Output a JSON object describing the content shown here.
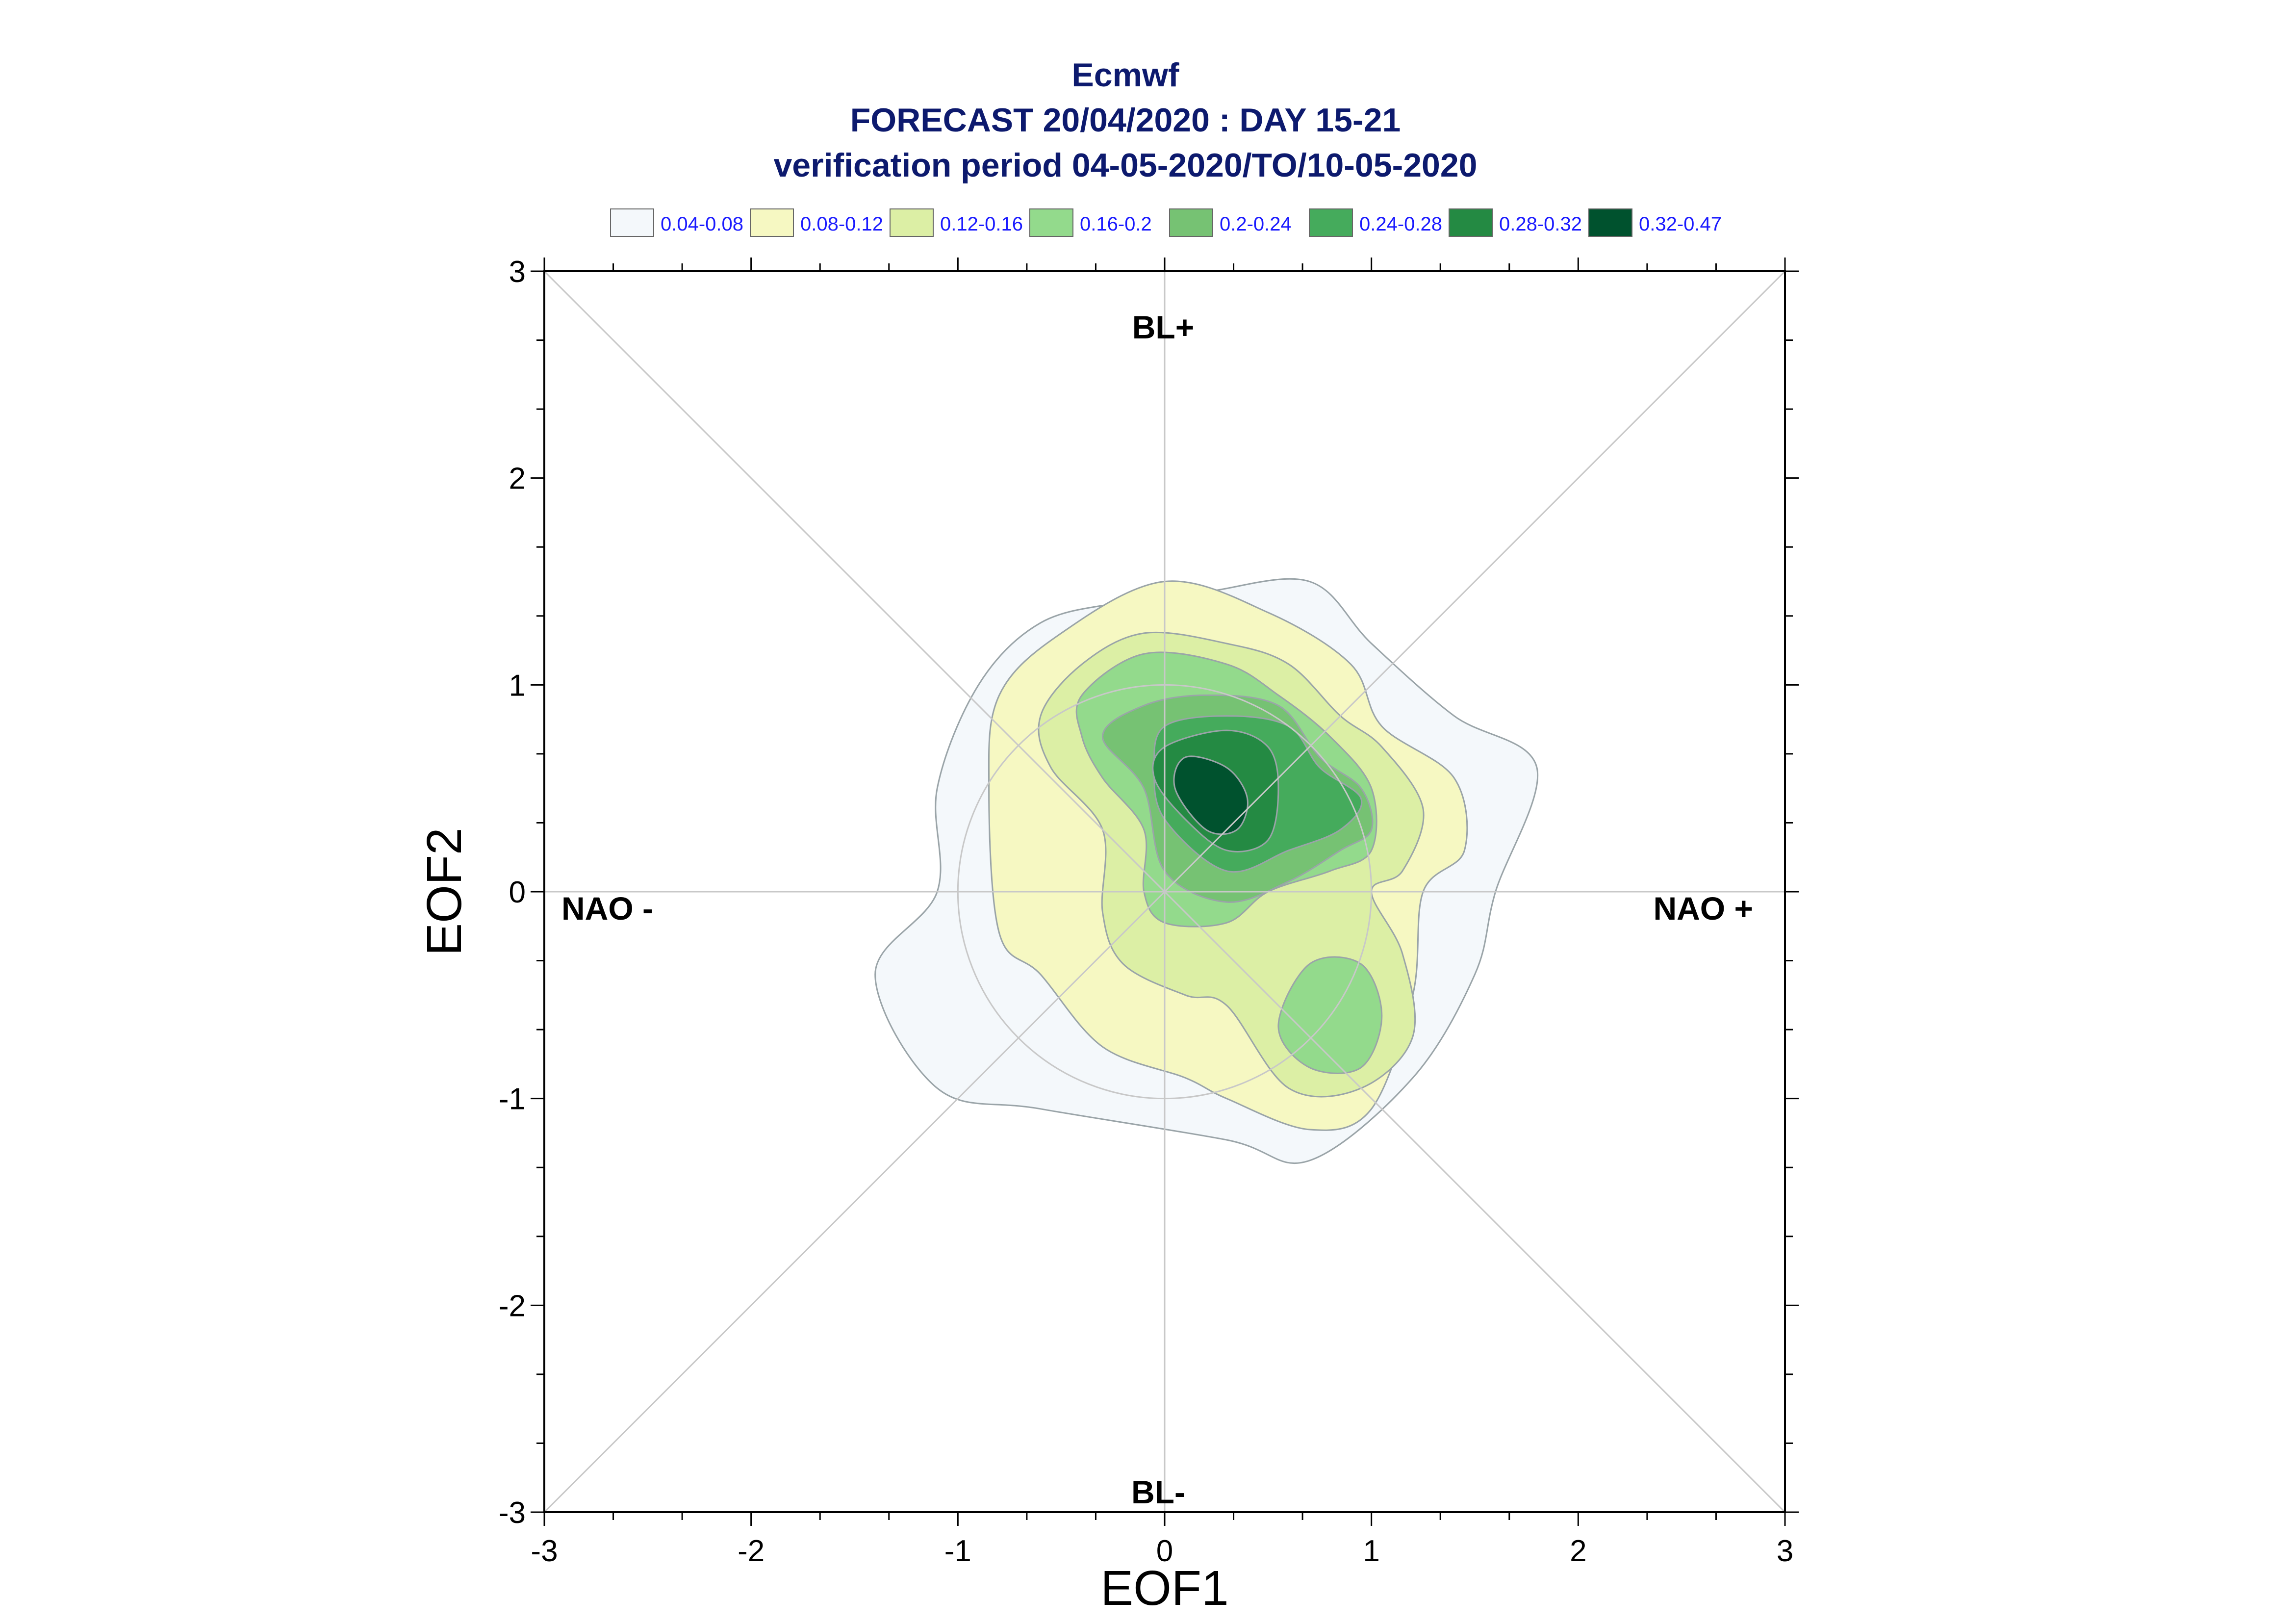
{
  "chart_data": {
    "type": "contour",
    "title_lines": [
      "Ecmwf",
      "FORECAST 20/04/2020 : DAY 15-21",
      "verification period 04-05-2020/TO/10-05-2020"
    ],
    "xlabel": "EOF1",
    "ylabel": "EOF2",
    "xlim": [
      -3,
      3
    ],
    "ylim": [
      -3,
      3
    ],
    "xticks": [
      "-3",
      "-2",
      "-1",
      "0",
      "1",
      "2",
      "3"
    ],
    "yticks": [
      "-3",
      "-2",
      "-1",
      "0",
      "1",
      "2",
      "3"
    ],
    "regime_labels": {
      "top": "BL+",
      "bottom": "BL-",
      "left": "NAO -",
      "right": "NAO +"
    },
    "grid": "axes cross and diagonals",
    "unit_circle_radius": 1,
    "legend": [
      {
        "label": "0.04-0.08",
        "color": "#f4f8fb"
      },
      {
        "label": "0.08-0.12",
        "color": "#f6f8c2"
      },
      {
        "label": "0.12-0.16",
        "color": "#dcefa5"
      },
      {
        "label": "0.16-0.2",
        "color": "#93da8c"
      },
      {
        "label": "0.2-0.24",
        "color": "#76c273"
      },
      {
        "label": "0.24-0.28",
        "color": "#45ab5c"
      },
      {
        "label": "0.28-0.32",
        "color": "#248a43"
      },
      {
        "label": "0.32-0.47",
        "color": "#00522e"
      }
    ],
    "contours": [
      {
        "level": "0.04-0.08",
        "color": "#f4f8fb",
        "points": [
          [
            -0.2,
            1.4
          ],
          [
            0.2,
            1.45
          ],
          [
            0.7,
            1.5
          ],
          [
            1.0,
            1.2
          ],
          [
            1.4,
            0.85
          ],
          [
            1.8,
            0.6
          ],
          [
            1.6,
            0.0
          ],
          [
            1.5,
            -0.4
          ],
          [
            1.2,
            -0.9
          ],
          [
            0.7,
            -1.3
          ],
          [
            0.3,
            -1.2
          ],
          [
            -0.6,
            -1.05
          ],
          [
            -1.1,
            -0.95
          ],
          [
            -1.4,
            -0.4
          ],
          [
            -1.1,
            0.0
          ],
          [
            -1.1,
            0.5
          ],
          [
            -0.9,
            1.0
          ],
          [
            -0.6,
            1.3
          ]
        ]
      },
      {
        "level": "0.08-0.12",
        "color": "#f6f8c2",
        "points": [
          [
            -0.5,
            1.25
          ],
          [
            0.0,
            1.5
          ],
          [
            0.5,
            1.35
          ],
          [
            0.9,
            1.1
          ],
          [
            1.05,
            0.8
          ],
          [
            1.4,
            0.55
          ],
          [
            1.45,
            0.2
          ],
          [
            1.25,
            0.0
          ],
          [
            1.2,
            -0.5
          ],
          [
            1.0,
            -1.05
          ],
          [
            0.7,
            -1.15
          ],
          [
            0.3,
            -1.0
          ],
          [
            0.1,
            -0.9
          ],
          [
            -0.3,
            -0.75
          ],
          [
            -0.6,
            -0.4
          ],
          [
            -0.8,
            -0.2
          ],
          [
            -0.85,
            0.5
          ],
          [
            -0.8,
            0.95
          ]
        ]
      },
      {
        "level": "0.12-0.16",
        "color": "#dcefa5",
        "points": [
          [
            -0.4,
            1.1
          ],
          [
            -0.1,
            1.25
          ],
          [
            0.3,
            1.2
          ],
          [
            0.6,
            1.1
          ],
          [
            0.85,
            0.85
          ],
          [
            1.05,
            0.7
          ],
          [
            1.25,
            0.4
          ],
          [
            1.15,
            0.1
          ],
          [
            1.0,
            0.0
          ],
          [
            1.15,
            -0.3
          ],
          [
            1.2,
            -0.7
          ],
          [
            0.95,
            -0.95
          ],
          [
            0.6,
            -0.95
          ],
          [
            0.3,
            -0.55
          ],
          [
            0.1,
            -0.5
          ],
          [
            -0.2,
            -0.35
          ],
          [
            -0.3,
            -0.1
          ],
          [
            -0.3,
            0.3
          ],
          [
            -0.55,
            0.6
          ],
          [
            -0.6,
            0.85
          ]
        ]
      },
      {
        "level": "0.16-0.2",
        "color": "#93da8c",
        "points": [
          [
            -0.4,
            0.95
          ],
          [
            -0.1,
            1.15
          ],
          [
            0.3,
            1.1
          ],
          [
            0.55,
            0.95
          ],
          [
            0.8,
            0.75
          ],
          [
            1.0,
            0.5
          ],
          [
            1.0,
            0.2
          ],
          [
            0.8,
            0.1
          ],
          [
            0.5,
            0.0
          ],
          [
            0.3,
            -0.15
          ],
          [
            0.0,
            -0.15
          ],
          [
            -0.1,
            0.0
          ],
          [
            -0.1,
            0.3
          ],
          [
            -0.3,
            0.55
          ],
          [
            -0.4,
            0.75
          ]
        ]
      },
      {
        "level": "0.16-0.2 (lower)",
        "color": "#93da8c",
        "points": [
          [
            0.7,
            -0.35
          ],
          [
            0.95,
            -0.35
          ],
          [
            1.05,
            -0.6
          ],
          [
            0.95,
            -0.85
          ],
          [
            0.7,
            -0.85
          ],
          [
            0.55,
            -0.65
          ]
        ]
      },
      {
        "level": "0.2-0.24",
        "color": "#76c273",
        "points": [
          [
            -0.1,
            0.9
          ],
          [
            0.2,
            0.95
          ],
          [
            0.55,
            0.9
          ],
          [
            0.75,
            0.65
          ],
          [
            0.95,
            0.5
          ],
          [
            1.0,
            0.3
          ],
          [
            0.85,
            0.2
          ],
          [
            0.6,
            0.05
          ],
          [
            0.3,
            -0.05
          ],
          [
            0.0,
            0.1
          ],
          [
            -0.1,
            0.5
          ],
          [
            -0.3,
            0.75
          ]
        ]
      },
      {
        "level": "0.24-0.28",
        "color": "#45ab5c",
        "points": [
          [
            0.0,
            0.8
          ],
          [
            0.3,
            0.85
          ],
          [
            0.6,
            0.8
          ],
          [
            0.75,
            0.6
          ],
          [
            0.95,
            0.45
          ],
          [
            0.85,
            0.3
          ],
          [
            0.6,
            0.2
          ],
          [
            0.3,
            0.1
          ],
          [
            0.0,
            0.35
          ],
          [
            -0.05,
            0.6
          ]
        ]
      },
      {
        "level": "0.28-0.32",
        "color": "#248a43",
        "points": [
          [
            0.0,
            0.7
          ],
          [
            0.3,
            0.78
          ],
          [
            0.5,
            0.7
          ],
          [
            0.55,
            0.5
          ],
          [
            0.5,
            0.25
          ],
          [
            0.3,
            0.2
          ],
          [
            0.1,
            0.35
          ],
          [
            -0.05,
            0.55
          ]
        ]
      },
      {
        "level": "0.32-0.47",
        "color": "#00522e",
        "points": [
          [
            0.1,
            0.65
          ],
          [
            0.3,
            0.6
          ],
          [
            0.4,
            0.45
          ],
          [
            0.35,
            0.3
          ],
          [
            0.2,
            0.3
          ],
          [
            0.05,
            0.5
          ]
        ]
      }
    ]
  }
}
